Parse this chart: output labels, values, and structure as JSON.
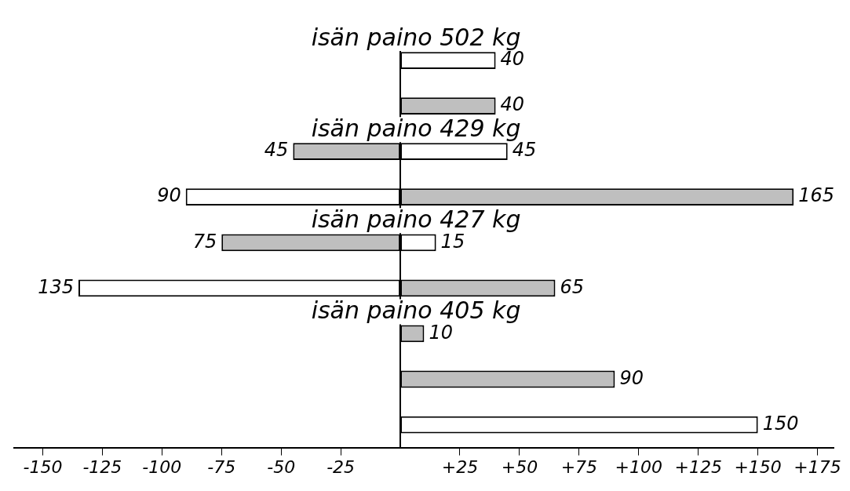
{
  "chart_data": {
    "type": "bar",
    "orientation": "horizontal",
    "categories": [
      "isän paino 502 kg",
      null,
      "isän paino 429 kg",
      null,
      "isän paino 427 kg",
      null,
      "isän paino 405 kg",
      null,
      null
    ],
    "series": [
      {
        "color": "#ffffff",
        "values": [
          40,
          null,
          45,
          90,
          15,
          135,
          null,
          null,
          150
        ],
        "base": [
          0,
          null,
          0,
          -90,
          0,
          -135,
          null,
          null,
          0
        ],
        "value_labels": [
          "40",
          null,
          "45",
          "90",
          "15",
          "135",
          null,
          null,
          "150"
        ]
      },
      {
        "color": "#bfbfbf",
        "values": [
          null,
          40,
          45,
          165,
          75,
          65,
          10,
          90,
          null
        ],
        "base": [
          null,
          0,
          -45,
          0,
          -75,
          0,
          0,
          0,
          null
        ],
        "value_labels": [
          null,
          "40",
          "45",
          "165",
          "75",
          "65",
          "10",
          "90",
          null
        ]
      }
    ],
    "xlim": [
      -162,
      182
    ],
    "xticks": [
      -150,
      -125,
      -100,
      -75,
      -50,
      -25,
      {
        "value": 25,
        "label": "+25"
      },
      {
        "value": 50,
        "label": "+50"
      },
      {
        "value": 75,
        "label": "+75"
      },
      {
        "value": 100,
        "label": "+100"
      },
      {
        "value": 125,
        "label": "+125"
      },
      {
        "value": 150,
        "label": "+150"
      },
      {
        "value": 175,
        "label": "+175"
      }
    ]
  }
}
